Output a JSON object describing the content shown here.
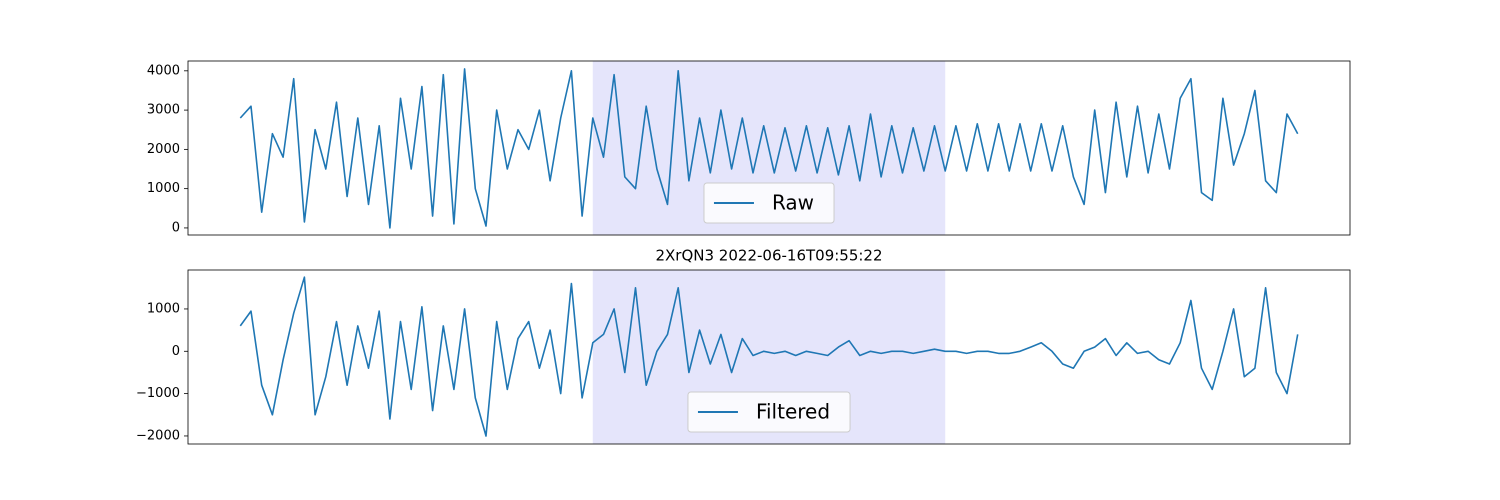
{
  "chart_data": [
    {
      "type": "line",
      "series": [
        {
          "name": "Raw",
          "color": "#1f77b4",
          "values": [
            2800,
            3100,
            400,
            2400,
            1800,
            3800,
            150,
            2500,
            1500,
            3200,
            800,
            2800,
            600,
            2600,
            0,
            3300,
            1500,
            3600,
            300,
            3900,
            100,
            4050,
            1000,
            50,
            3000,
            1500,
            2500,
            2000,
            3000,
            1200,
            2800,
            4000,
            300,
            2800,
            1800,
            3900,
            1300,
            1000,
            3100,
            1500,
            600,
            4000,
            1200,
            2800,
            1400,
            3000,
            1500,
            2800,
            1400,
            2600,
            1400,
            2550,
            1450,
            2600,
            1400,
            2550,
            1350,
            2600,
            1200,
            2900,
            1300,
            2600,
            1400,
            2550,
            1450,
            2600,
            1450,
            2600,
            1450,
            2650,
            1450,
            2650,
            1450,
            2650,
            1450,
            2650,
            1450,
            2600,
            1300,
            600,
            3000,
            900,
            3200,
            1300,
            3100,
            1400,
            2900,
            1500,
            3300,
            3800,
            900,
            700,
            3300,
            1600,
            2400,
            3500,
            1200,
            900,
            2900,
            2400
          ]
        }
      ],
      "xlim": [
        -4.9,
        103.9
      ],
      "ylim": [
        -180,
        4250
      ],
      "yticks": [
        0,
        1000,
        2000,
        3000,
        4000
      ],
      "span": [
        33,
        66
      ],
      "span_color": "#e5e5fb",
      "legend": "lower center"
    },
    {
      "type": "line",
      "title": "2XrQN3 2022-06-16T09:55:22",
      "series": [
        {
          "name": "Filtered",
          "color": "#1f77b4",
          "values": [
            600,
            950,
            -800,
            -1500,
            -200,
            900,
            1750,
            -1500,
            -600,
            700,
            -800,
            600,
            -400,
            950,
            -1600,
            700,
            -900,
            1050,
            -1400,
            600,
            -900,
            1000,
            -1100,
            -2000,
            700,
            -900,
            300,
            700,
            -400,
            500,
            -1000,
            1600,
            -1100,
            200,
            400,
            1000,
            -500,
            1500,
            -800,
            0,
            400,
            1500,
            -500,
            500,
            -300,
            400,
            -500,
            300,
            -100,
            0,
            -50,
            0,
            -100,
            0,
            -50,
            -100,
            100,
            250,
            -100,
            0,
            -50,
            0,
            0,
            -50,
            0,
            50,
            0,
            0,
            -50,
            0,
            0,
            -50,
            -50,
            0,
            100,
            200,
            0,
            -300,
            -400,
            0,
            100,
            300,
            -100,
            200,
            -50,
            0,
            -200,
            -300,
            200,
            1200,
            -400,
            -900,
            0,
            1000,
            -600,
            -400,
            1500,
            -500,
            -1000,
            400
          ]
        }
      ],
      "xlim": [
        -4.9,
        103.9
      ],
      "ylim": [
        -2190,
        1920
      ],
      "yticks": [
        {
          "value": -2000,
          "label": "−2000"
        },
        {
          "value": -1000,
          "label": "−1000"
        },
        0,
        1000
      ],
      "span": [
        33,
        66
      ],
      "span_color": "#e5e5fb",
      "legend": "lower center"
    }
  ]
}
